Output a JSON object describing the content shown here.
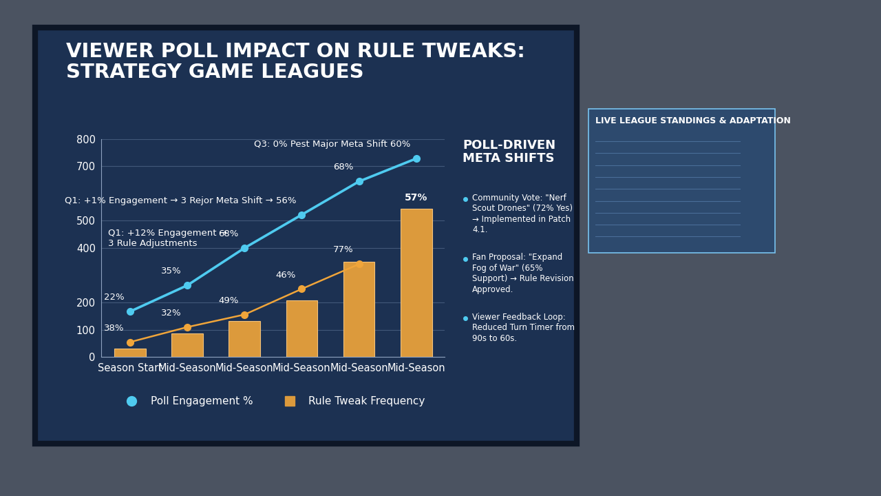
{
  "chart_data": {
    "type": "combo",
    "title": "VIEWER POLL IMPACT ON RULE TWEAKS:\nSTRATEGY GAME LEAGUES",
    "categories": [
      "Season Start",
      "Mid-Season",
      "Mid-Season",
      "Mid-Season",
      "Mid-Season",
      "Mid-Season"
    ],
    "ylim": [
      0,
      800
    ],
    "yticks": [
      0,
      100,
      200,
      400,
      500,
      700,
      800
    ],
    "grid": true,
    "legend": "lower center",
    "series": [
      {
        "name": "Poll Engagement %",
        "type": "line",
        "color": "#4fcbf0",
        "marker": "o",
        "values": [
          167,
          263,
          400,
          522,
          644,
          728
        ],
        "point_notes": [
          "22%",
          "35%",
          "68%",
          "Q1: +1% Engagement → 3 Rejor Meta Shift → 56%",
          "68%",
          "Q3: 0% Pest Major Meta Shift 60%"
        ]
      },
      {
        "name": "Rule Tweak Frequency",
        "type": "bar",
        "color": "#dc9a3c",
        "values": [
          31,
          86,
          133,
          208,
          350,
          545
        ],
        "point_notes": [
          null,
          null,
          null,
          null,
          null,
          "57%"
        ]
      },
      {
        "type": "line",
        "color": "#f0a53a",
        "marker": "o",
        "values": [
          55,
          110,
          156,
          250,
          341,
          null
        ],
        "point_notes": [
          "38%",
          "32%",
          "49%",
          "46%",
          "77%",
          null
        ]
      }
    ],
    "annotations": [
      "Q1: +12% Engagement → 3 Rule Adjustments"
    ]
  },
  "side_panel": {
    "title": "POLL-DRIVEN\nMETA SHIFTS",
    "items": [
      "Community Vote: \"Nerf Scout Drones\" (72% Yes) → Implemented in Patch 4.1.",
      "Fan Proposal: \"Expand Fog of War\" (65% Support) → Rule Revision Approved.",
      "Viewer Feedback Loop: Reduced Turn Timer from 90s to 60s."
    ]
  },
  "standings_panel": {
    "title": "LIVE LEAGUE STANDINGS & ADAPTATION"
  }
}
